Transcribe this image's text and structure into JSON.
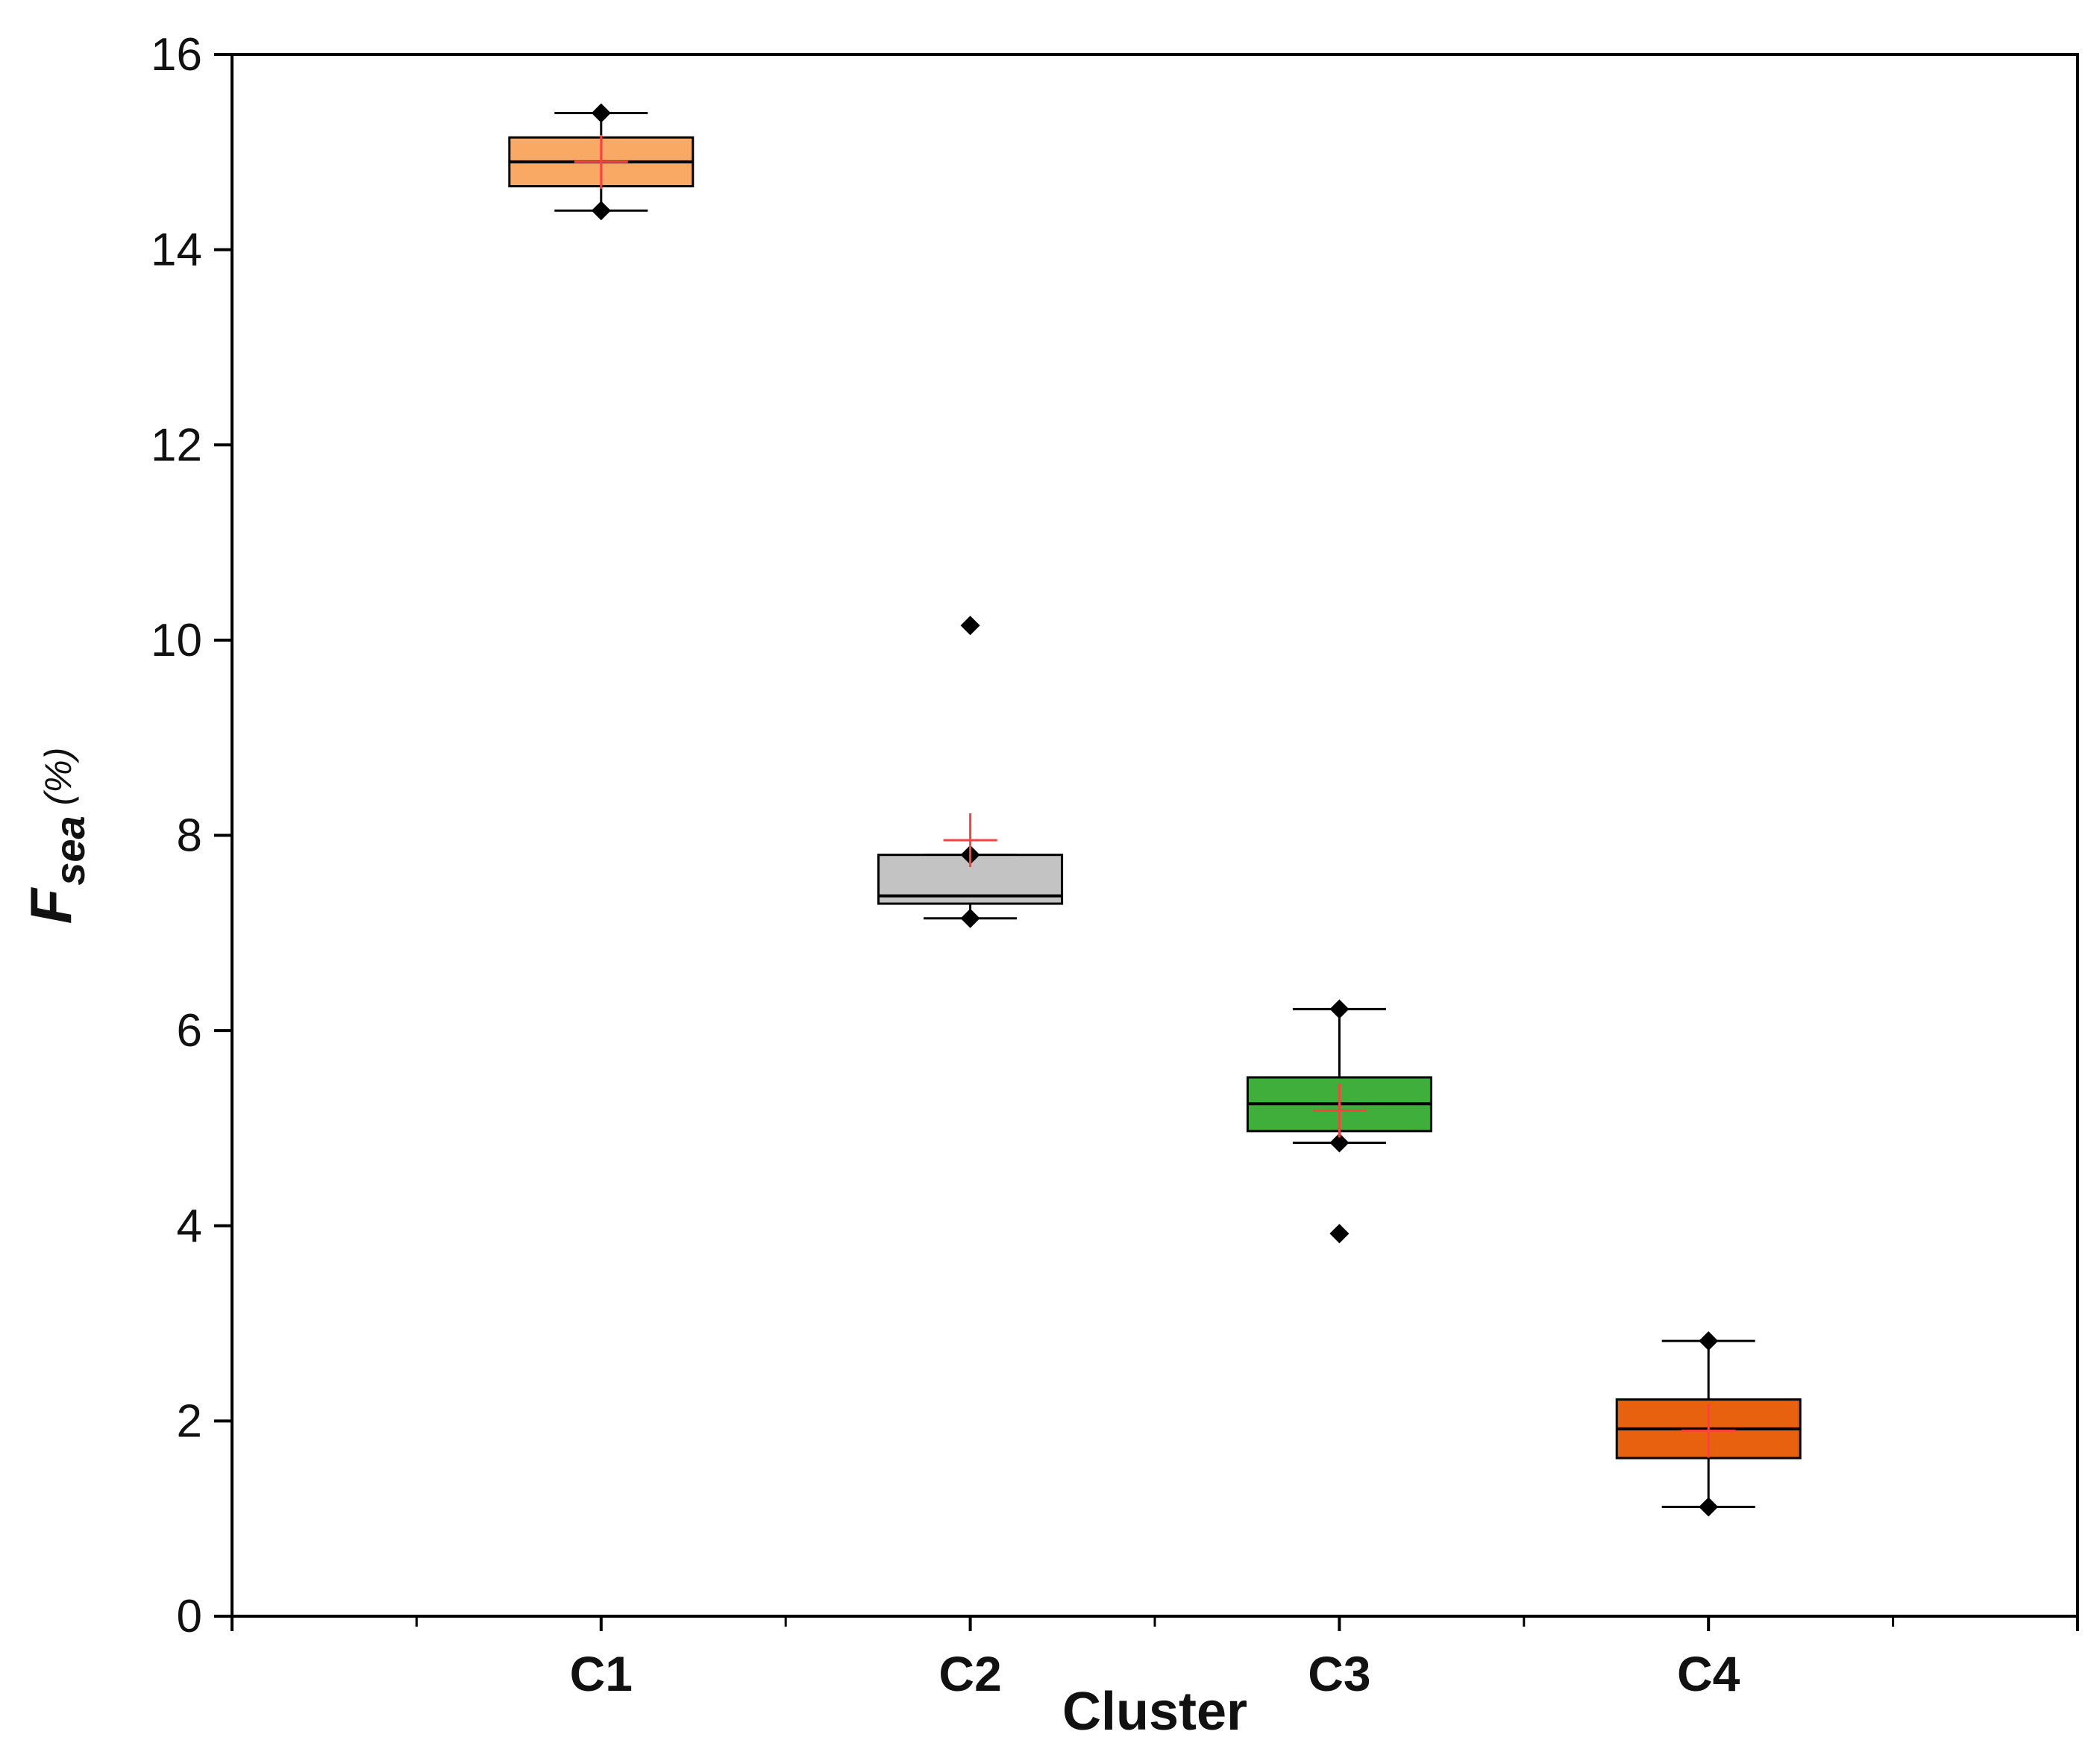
{
  "chart_data": {
    "type": "boxplot",
    "xlabel": "Cluster",
    "ylabel": {
      "main": "F",
      "subscript": "sea",
      "unit": "(%)"
    },
    "ylim": [
      0,
      16
    ],
    "yticks": [
      0,
      2,
      4,
      6,
      8,
      10,
      12,
      14,
      16
    ],
    "grid": false,
    "categories": [
      "C1",
      "C2",
      "C3",
      "C4"
    ],
    "boxes": [
      {
        "category": "C1",
        "min": 14.4,
        "q1": 14.65,
        "median": 14.9,
        "q3": 15.15,
        "max": 15.4,
        "mean": 14.9,
        "outliers": [],
        "color": "#F9A963"
      },
      {
        "category": "C2",
        "min": 7.15,
        "q1": 7.3,
        "median": 7.38,
        "q3": 7.8,
        "max": 7.8,
        "mean": 7.95,
        "outliers": [
          10.15
        ],
        "color": "#C3C3C3"
      },
      {
        "category": "C3",
        "min": 4.85,
        "q1": 4.97,
        "median": 5.25,
        "q3": 5.52,
        "max": 6.22,
        "mean": 5.18,
        "outliers": [
          3.92
        ],
        "color": "#3FAE3A"
      },
      {
        "category": "C4",
        "min": 1.12,
        "q1": 1.62,
        "median": 1.92,
        "q3": 2.22,
        "max": 2.82,
        "mean": 1.9,
        "outliers": [],
        "color": "#E8610F"
      }
    ],
    "mean_marker_color": "#FF4040"
  }
}
